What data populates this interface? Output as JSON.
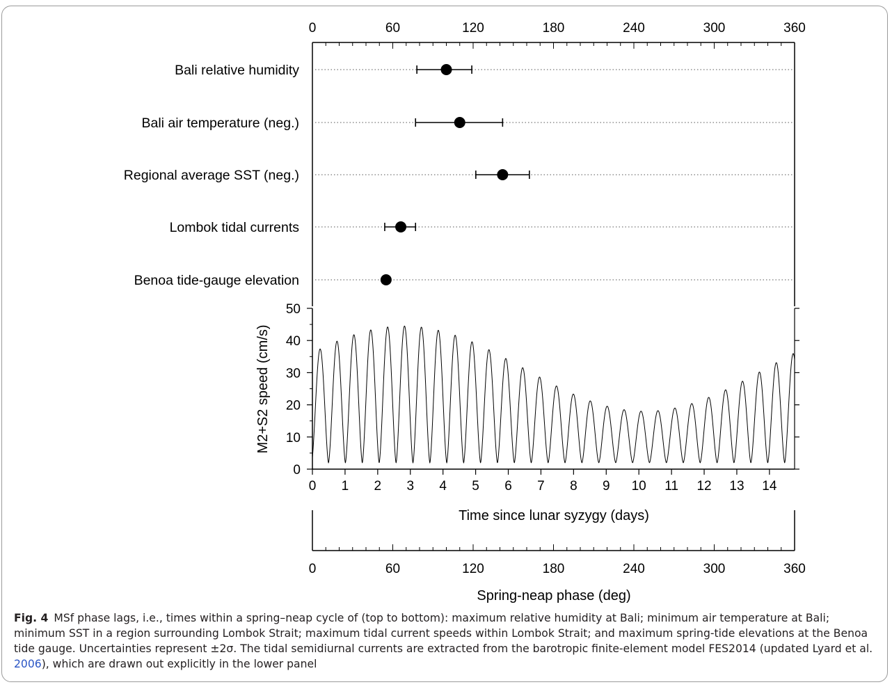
{
  "chart_data": [
    {
      "type": "scatter",
      "panel": "phase-lags",
      "x_axis_top": {
        "range": [
          0,
          360
        ],
        "ticks": [
          "0",
          "60",
          "120",
          "180",
          "240",
          "300",
          "360"
        ],
        "minor_step": 10
      },
      "series": [
        {
          "label": "Bali relative humidity",
          "phase": 100,
          "err_low": 78,
          "err_high": 119
        },
        {
          "label": "Bali air temperature (neg.)",
          "phase": 110,
          "err_low": 77,
          "err_high": 142
        },
        {
          "label": "Regional average SST (neg.)",
          "phase": 142,
          "err_low": 122,
          "err_high": 162
        },
        {
          "label": "Lombok tidal currents",
          "phase": 66,
          "err_low": 54,
          "err_high": 77
        },
        {
          "label": "Benoa tide-gauge elevation",
          "phase": 55,
          "err_low": null,
          "err_high": null
        }
      ],
      "grid": "dotted horizontal lines per row"
    },
    {
      "type": "line",
      "panel": "tidal-currents",
      "ylabel": "M2+S2 speed (cm/s)",
      "xlabel": "Time since lunar syzygy (days)",
      "ylim": [
        0,
        50
      ],
      "xlim": [
        0,
        14.77
      ],
      "y_ticks": [
        "0",
        "10",
        "20",
        "30",
        "40",
        "50"
      ],
      "x_ticks": [
        "0",
        "1",
        "2",
        "3",
        "4",
        "5",
        "6",
        "7",
        "8",
        "9",
        "10",
        "11",
        "12",
        "13",
        "14"
      ],
      "signal": {
        "max_envelope_peak": 44.5,
        "max_envelope_trough": 18,
        "envelope_peak_day": 2.8,
        "min_speed": 2,
        "semidiurnal_period_days": 0.5175,
        "spring_neap_period_days": 14.77
      }
    },
    {
      "type": "axis",
      "panel": "phase-axis",
      "xlabel": "Spring-neap phase (deg)",
      "range": [
        0,
        360
      ],
      "ticks": [
        "0",
        "60",
        "120",
        "180",
        "240",
        "300",
        "360"
      ],
      "minor_step": 10
    }
  ],
  "caption": {
    "fig_label": "Fig. 4",
    "text_before_cite": "MSf phase lags, i.e., times within a spring–neap cycle of (top to bottom): maximum relative humidity at Bali; minimum air temperature at Bali; minimum SST in a region surrounding Lombok Strait; maximum tidal current speeds within Lombok Strait; and maximum spring-tide elevations at the Benoa tide gauge. Uncertainties represent ±2σ. The tidal semidiurnal currents are extracted from the barotropic finite-element model FES2014 (updated Lyard et al. ",
    "cite_year": "2006",
    "text_after_cite": "), which are drawn out explicitly in the lower panel"
  }
}
